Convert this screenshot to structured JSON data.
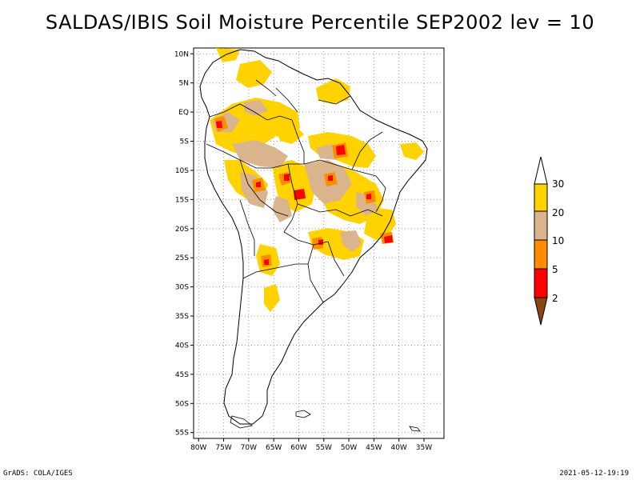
{
  "title": "SALDAS/IBIS Soil Moisture Percentile SEP2002 lev = 10",
  "footer": {
    "left": "GrADS: COLA/IGES",
    "right": "2021-05-12-19:19"
  },
  "axes": {
    "lat_ticks": [
      "10N",
      "5N",
      "EQ",
      "5S",
      "10S",
      "15S",
      "20S",
      "25S",
      "30S",
      "35S",
      "40S",
      "45S",
      "50S",
      "55S"
    ],
    "lat_values": [
      10,
      5,
      0,
      -5,
      -10,
      -15,
      -20,
      -25,
      -30,
      -35,
      -40,
      -45,
      -50,
      -55
    ],
    "lon_ticks": [
      "80W",
      "75W",
      "70W",
      "65W",
      "60W",
      "55W",
      "50W",
      "45W",
      "40W",
      "35W"
    ],
    "lon_values": [
      -80,
      -75,
      -70,
      -65,
      -60,
      -55,
      -50,
      -45,
      -40,
      -35
    ],
    "lon_range": [
      -81,
      -31
    ],
    "lat_range": [
      -56,
      11
    ],
    "grid": true
  },
  "legend": {
    "placement": "right",
    "labels": [
      "30",
      "20",
      "10",
      "5",
      "2"
    ],
    "colors": {
      "gt30": "#ffffff",
      "20-30": "#ffd200",
      "10-20": "#d9b48c",
      "5-10": "#ff8c00",
      "2-5": "#ff0000",
      "lt2": "#8b4513"
    }
  },
  "colors": {
    "outline": "#000000",
    "grid": "#999999",
    "background": "#ffffff"
  }
}
